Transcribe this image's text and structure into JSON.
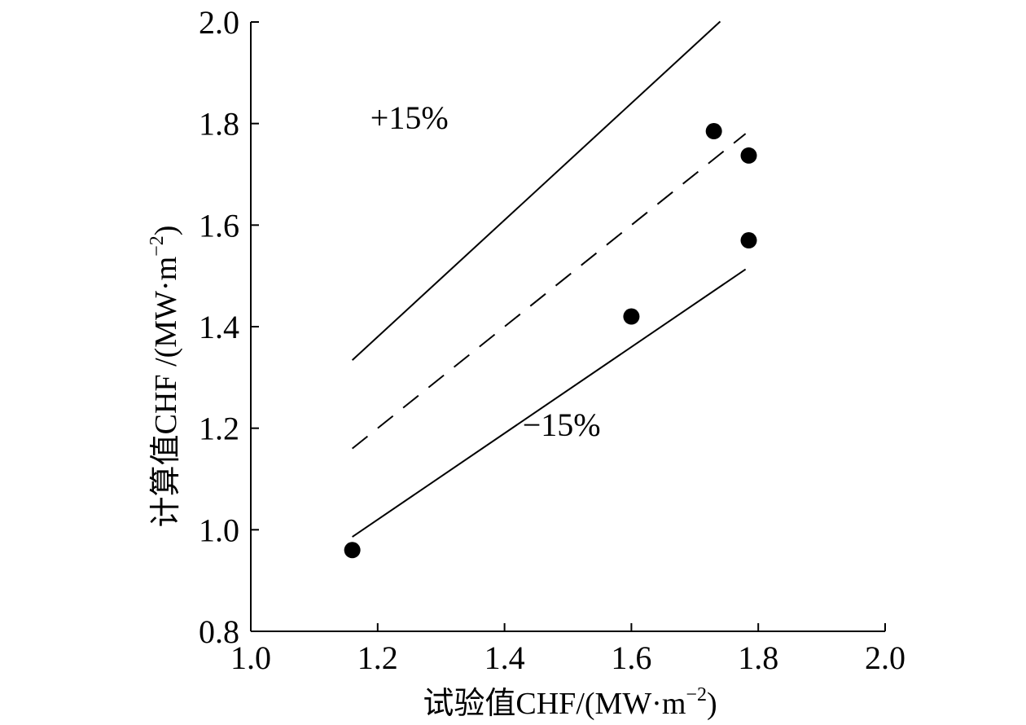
{
  "chart_data": {
    "type": "scatter",
    "title": "",
    "xlabel": "试验值CHF/(MW·m",
    "xlabel_sup": "−2",
    "xlabel_close": ")",
    "ylabel": "计算值CHF /(MW·m",
    "ylabel_sup": "−2",
    "ylabel_close": ")",
    "xlim": [
      1.0,
      2.0
    ],
    "ylim": [
      0.8,
      2.0
    ],
    "x_ticks": [
      1.0,
      1.2,
      1.4,
      1.6,
      1.8,
      2.0
    ],
    "y_ticks": [
      0.8,
      1.0,
      1.2,
      1.4,
      1.6,
      1.8,
      2.0
    ],
    "x_tick_labels": [
      "1.0",
      "1.2",
      "1.4",
      "1.6",
      "1.8",
      "2.0"
    ],
    "y_tick_labels": [
      "0.8",
      "1.0",
      "1.2",
      "1.4",
      "1.6",
      "1.8",
      "2.0"
    ],
    "grid": false,
    "points": [
      {
        "x": 1.16,
        "y": 0.96
      },
      {
        "x": 1.6,
        "y": 1.42
      },
      {
        "x": 1.73,
        "y": 1.785
      },
      {
        "x": 1.785,
        "y": 1.737
      },
      {
        "x": 1.785,
        "y": 1.57
      }
    ],
    "reference_lines": [
      {
        "name": "+15%",
        "slope": 1.15,
        "x_range": [
          1.16,
          1.74
        ],
        "style": "solid"
      },
      {
        "name": "y=x",
        "slope": 1.0,
        "x_range": [
          1.16,
          1.78
        ],
        "style": "dashed"
      },
      {
        "name": "-15%",
        "slope": 0.85,
        "x_range": [
          1.16,
          1.78
        ],
        "style": "solid"
      }
    ],
    "annotations": [
      {
        "text": "+15%",
        "x": 1.25,
        "y": 1.79
      },
      {
        "text": "−15%",
        "x": 1.49,
        "y": 1.185
      }
    ]
  }
}
